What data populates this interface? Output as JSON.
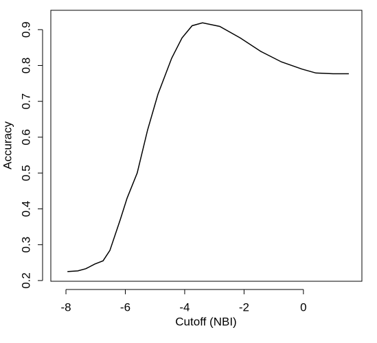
{
  "chart_data": {
    "type": "line",
    "x_label": "Cutoff (NBI)",
    "y_label": "Accuracy",
    "xlim": [
      -8.51,
      1.97
    ],
    "ylim": [
      0.198,
      0.954
    ],
    "xticks": [
      -8,
      -6,
      -4,
      -2,
      0
    ],
    "yticks": [
      0.2,
      0.3,
      0.4,
      0.5,
      0.6,
      0.7,
      0.8,
      0.9
    ],
    "x": [
      -7.95,
      -7.6,
      -7.33,
      -7.03,
      -6.75,
      -6.52,
      -6.17,
      -5.94,
      -5.6,
      -5.25,
      -4.9,
      -4.44,
      -4.09,
      -3.75,
      -3.4,
      -2.82,
      -2.13,
      -1.43,
      -0.74,
      -0.05,
      0.42,
      1.0,
      1.53
    ],
    "series": [
      {
        "color": "#000000",
        "values": [
          0.225,
          0.227,
          0.233,
          0.246,
          0.255,
          0.284,
          0.37,
          0.43,
          0.5,
          0.62,
          0.72,
          0.82,
          0.877,
          0.911,
          0.919,
          0.909,
          0.877,
          0.839,
          0.81,
          0.79,
          0.779,
          0.777,
          0.777
        ]
      }
    ]
  }
}
